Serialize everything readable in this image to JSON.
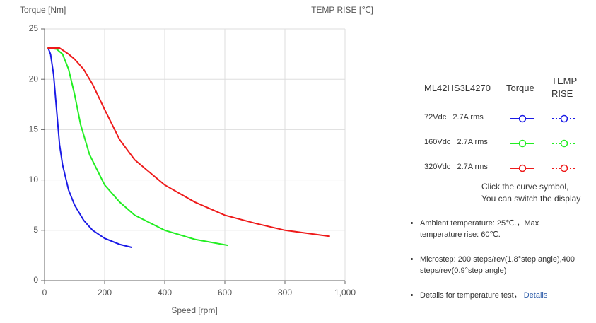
{
  "chart_data": {
    "type": "line",
    "y_label": "Torque  [Nm]",
    "y2_label": "TEMP RISE [℃]",
    "x_label": "Speed [rpm]",
    "xlim": [
      0,
      1000
    ],
    "xticks": [
      0,
      200,
      400,
      600,
      800,
      {
        "value": 1000,
        "label": "1,000"
      }
    ],
    "ylim": [
      0,
      25
    ],
    "yticks": [
      0,
      5,
      10,
      15,
      20,
      25
    ],
    "grid": true,
    "series": [
      {
        "name": "72Vdc   2.7A rms",
        "color": "#1a1ae6",
        "x": [
          12,
          20,
          30,
          40,
          50,
          60,
          80,
          100,
          130,
          160,
          200,
          250,
          290
        ],
        "values": [
          23.1,
          22.5,
          20.5,
          17,
          13.5,
          11.5,
          9,
          7.5,
          6,
          5,
          4.2,
          3.6,
          3.3
        ]
      },
      {
        "name": "160Vdc   2.7A rms",
        "color": "#22ee22",
        "x": [
          10,
          40,
          60,
          80,
          100,
          120,
          150,
          200,
          250,
          300,
          400,
          500,
          610
        ],
        "values": [
          23.1,
          23,
          22.5,
          21,
          18.5,
          15.5,
          12.5,
          9.5,
          7.8,
          6.5,
          5,
          4.1,
          3.5
        ]
      },
      {
        "name": "320Vdc   2.7A rms",
        "color": "#ee1a1a",
        "x": [
          10,
          50,
          80,
          100,
          130,
          160,
          200,
          250,
          300,
          400,
          500,
          600,
          700,
          800,
          950
        ],
        "values": [
          23.1,
          23.1,
          22.5,
          22,
          21,
          19.5,
          17,
          14,
          12,
          9.5,
          7.8,
          6.5,
          5.7,
          5,
          4.4
        ]
      }
    ]
  },
  "legend": {
    "model": "ML42HS3L4270",
    "torque_header": "Torque",
    "temp_header": "TEMP RISE",
    "hint": [
      "Click the curve symbol,",
      "You can switch the display"
    ]
  },
  "notes": [
    "Ambient temperature: 25℃.，Max temperature rise: 60℃.",
    "Microstep: 200 steps/rev(1.8°step angle),400 steps/rev(0.9°step angle)",
    "Details for temperature test，"
  ],
  "details_link": "Details"
}
